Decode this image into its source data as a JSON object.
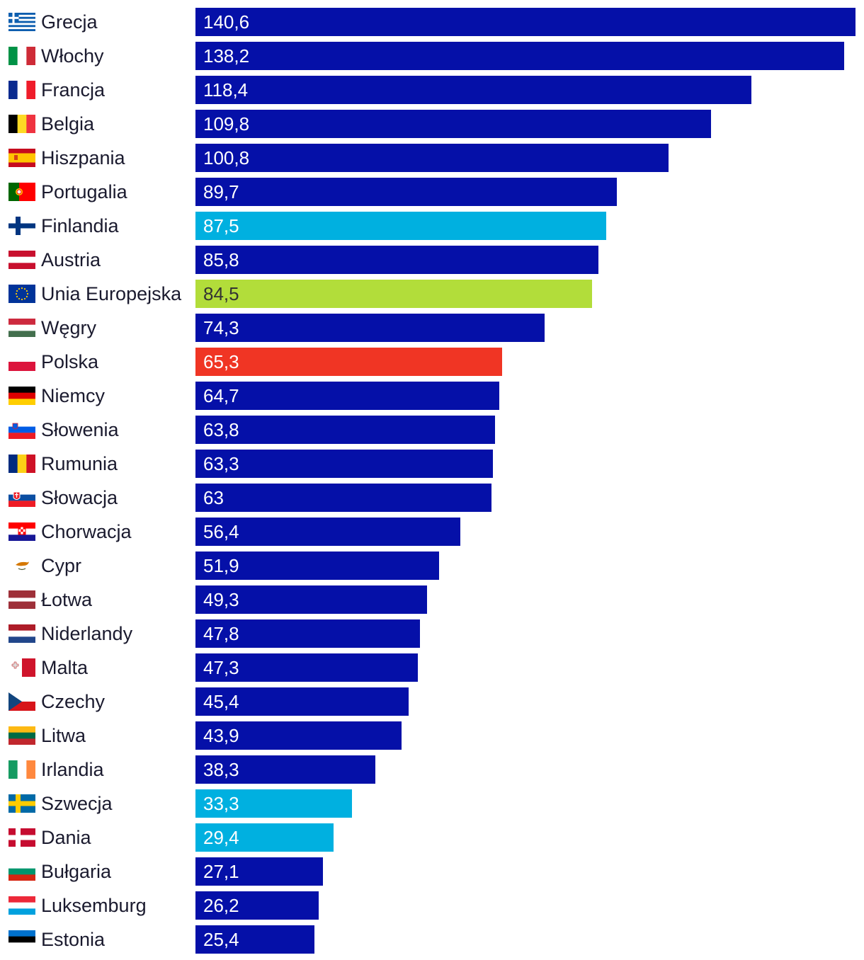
{
  "chart_data": {
    "type": "bar",
    "orientation": "horizontal",
    "title": "",
    "xlabel": "",
    "ylabel": "",
    "xlim": [
      0,
      140.6
    ],
    "grid": false,
    "colors": {
      "default": "#0510a8",
      "nordic": "#00b0e0",
      "eu": "#b2dd3a",
      "poland": "#f03524"
    },
    "categories": [
      "Grecja",
      "Włochy",
      "Francja",
      "Belgia",
      "Hiszpania",
      "Portugalia",
      "Finlandia",
      "Austria",
      "Unia Europejska",
      "Węgry",
      "Polska",
      "Niemcy",
      "Słowenia",
      "Rumunia",
      "Słowacja",
      "Chorwacja",
      "Cypr",
      "Łotwa",
      "Niderlandy",
      "Malta",
      "Czechy",
      "Litwa",
      "Irlandia",
      "Szwecja",
      "Dania",
      "Bułgaria",
      "Luksemburg",
      "Estonia"
    ],
    "values": [
      140.6,
      138.2,
      118.4,
      109.8,
      100.8,
      89.7,
      87.5,
      85.8,
      84.5,
      74.3,
      65.3,
      64.7,
      63.8,
      63.3,
      63,
      56.4,
      51.9,
      49.3,
      47.8,
      47.3,
      45.4,
      43.9,
      38.3,
      33.3,
      29.4,
      27.1,
      26.2,
      25.4
    ],
    "labels": [
      "140,6",
      "138,2",
      "118,4",
      "109,8",
      "100,8",
      "89,7",
      "87,5",
      "85,8",
      "84,5",
      "74,3",
      "65,3",
      "64,7",
      "63,8",
      "63,3",
      "63",
      "56,4",
      "51,9",
      "49,3",
      "47,8",
      "47,3",
      "45,4",
      "43,9",
      "38,3",
      "33,3",
      "29,4",
      "27,1",
      "26,2",
      "25,4"
    ],
    "highlight": [
      "default",
      "default",
      "default",
      "default",
      "default",
      "default",
      "nordic",
      "default",
      "eu",
      "default",
      "poland",
      "default",
      "default",
      "default",
      "default",
      "default",
      "default",
      "default",
      "default",
      "default",
      "default",
      "default",
      "default",
      "nordic",
      "nordic",
      "default",
      "default",
      "default"
    ],
    "flags": [
      "gr-flag-icon",
      "it-flag-icon",
      "fr-flag-icon",
      "be-flag-icon",
      "es-flag-icon",
      "pt-flag-icon",
      "fi-flag-icon",
      "at-flag-icon",
      "eu-flag-icon",
      "hu-flag-icon",
      "pl-flag-icon",
      "de-flag-icon",
      "si-flag-icon",
      "ro-flag-icon",
      "sk-flag-icon",
      "hr-flag-icon",
      "cy-flag-icon",
      "lv-flag-icon",
      "nl-flag-icon",
      "mt-flag-icon",
      "cz-flag-icon",
      "lt-flag-icon",
      "ie-flag-icon",
      "se-flag-icon",
      "dk-flag-icon",
      "bg-flag-icon",
      "lu-flag-icon",
      "ee-flag-icon"
    ]
  }
}
